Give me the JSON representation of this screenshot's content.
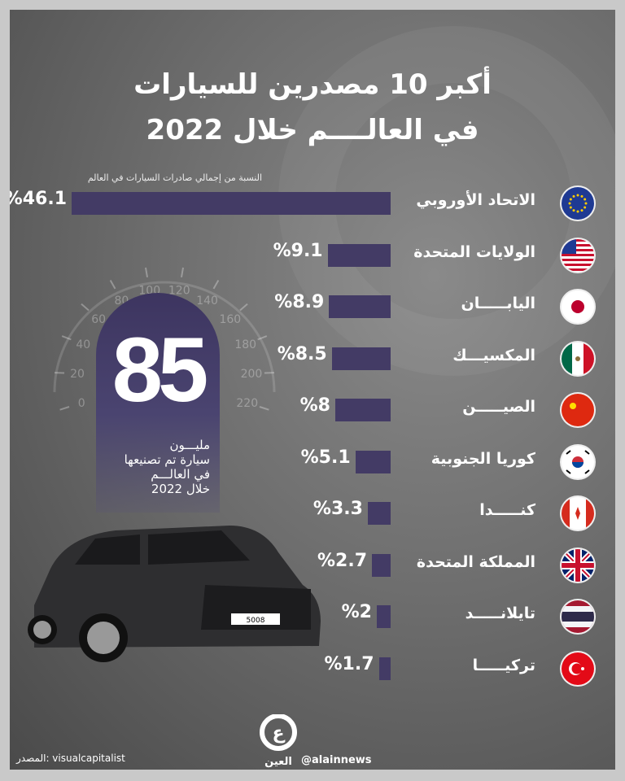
{
  "title": {
    "line1": "أكبر 10 مصدرين للسيارات",
    "line2": "في العالــــم خلال 2022"
  },
  "chart_data": {
    "type": "bar",
    "orientation": "horizontal",
    "title": "أكبر 10 مصدرين للسيارات في العالم خلال 2022",
    "xlabel": "النسبة من إجمالي صادرات السيارات في العالم",
    "categories": [
      "الاتحاد الأوروبي",
      "الولايات المتحدة",
      "اليابـــــان",
      "المكسيـــك",
      "الصيـــــن",
      "كوريا الجنوبية",
      "كنـــــدا",
      "المملكة المتحدة",
      "تايلانـــــد",
      "تركيـــــا"
    ],
    "values": [
      46.1,
      9.1,
      8.9,
      8.5,
      8,
      5.1,
      3.3,
      2.7,
      2,
      1.7
    ],
    "value_labels": [
      "%46.1",
      "%9.1",
      "%8.9",
      "%8.5",
      "%8",
      "%5.1",
      "%3.3",
      "%2.7",
      "%2",
      "%1.7"
    ],
    "flags": [
      "eu-flag",
      "us-flag",
      "japan-flag",
      "mexico-flag",
      "china-flag",
      "south-korea-flag",
      "canada-flag",
      "uk-flag",
      "thailand-flag",
      "turkey-flag"
    ],
    "bar_color": "#433b65",
    "grid": false
  },
  "highlight": {
    "number": "85",
    "lines": [
      "مليـــون",
      "سيارة تم تصنيعها",
      "في العالـــم",
      "خلال 2022"
    ],
    "gauge_ticks": [
      "0",
      "20",
      "40",
      "60",
      "80",
      "100",
      "120",
      "140",
      "160",
      "180",
      "200",
      "220"
    ]
  },
  "car": {
    "plate": "5008"
  },
  "footer": {
    "source": "المصدر: visualcapitalist",
    "handle": "@alainnews",
    "logo_text": "العين"
  }
}
